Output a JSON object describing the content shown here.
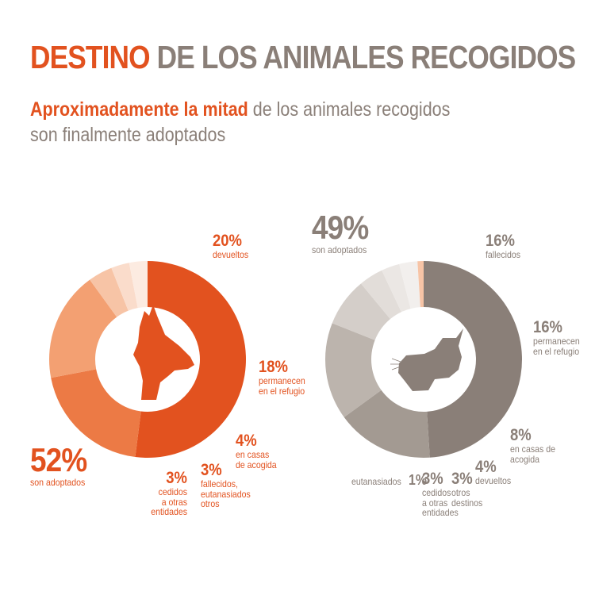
{
  "header": {
    "title_highlight": "DESTINO",
    "title_rest": " DE LOS ANIMALES RECOGIDOS",
    "subtitle_highlight": "Aproximadamente la mitad",
    "subtitle_rest_line1": " de los animales recogidos",
    "subtitle_line2": "son finalmente adoptados"
  },
  "labels": {
    "dog": [
      {
        "pct": "52%",
        "text": "son adoptados"
      },
      {
        "pct": "20%",
        "text": "devueltos"
      },
      {
        "pct": "18%",
        "text": "permanecen\nen el refugio"
      },
      {
        "pct": "4%",
        "text": "en casas\nde acogida"
      },
      {
        "pct": "3%",
        "text": "fallecidos,\neutanasiados\notros"
      },
      {
        "pct": "3%",
        "text": "cedidos\na otras\nentidades"
      }
    ],
    "cat": [
      {
        "pct": "49%",
        "text": "son adoptados"
      },
      {
        "pct": "16%",
        "text": "fallecidos"
      },
      {
        "pct": "16%",
        "text": "permanecen\nen el refugio"
      },
      {
        "pct": "8%",
        "text": "en casas de\nacogida"
      },
      {
        "pct": "4%",
        "text": "devueltos"
      },
      {
        "pct": "3%",
        "text": "otros\ndestinos"
      },
      {
        "pct": "3%",
        "text": "cedidos\na otras\nentidades"
      },
      {
        "pct": "1%",
        "text": "eutanasiados"
      }
    ]
  },
  "chart_data": [
    {
      "type": "pie",
      "donut": true,
      "icon": "dog-icon",
      "categories": [
        "son adoptados",
        "devueltos",
        "permanecen en el refugio",
        "en casas de acogida",
        "fallecidos, eutanasiados otros",
        "cedidos a otras entidades"
      ],
      "values": [
        52,
        20,
        18,
        4,
        3,
        3
      ],
      "colors": [
        "#e2521f",
        "#ec7a45",
        "#f3a072",
        "#f7c4a6",
        "#fadccb",
        "#fcebe1"
      ]
    },
    {
      "type": "pie",
      "donut": true,
      "icon": "cat-icon",
      "categories": [
        "son adoptados",
        "fallecidos",
        "permanecen en el refugio",
        "en casas de acogida",
        "devueltos",
        "otros destinos",
        "cedidos a otras entidades",
        "eutanasiados"
      ],
      "values": [
        49,
        16,
        16,
        8,
        4,
        3,
        3,
        1
      ],
      "colors": [
        "#8a7f78",
        "#a39a92",
        "#bcb4ad",
        "#d4cec9",
        "#e2ddd9",
        "#ebe7e4",
        "#f2efed",
        "#f7c4a6"
      ]
    }
  ]
}
